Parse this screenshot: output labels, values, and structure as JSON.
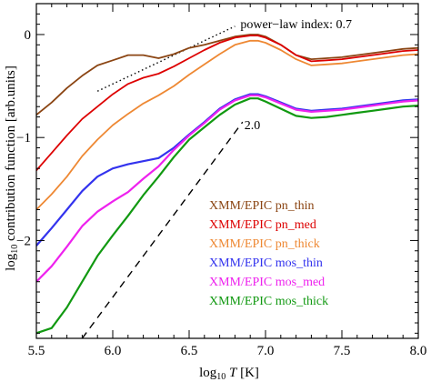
{
  "chart_data": {
    "type": "line",
    "xlim": [
      5.5,
      8.0
    ],
    "ylim": [
      -2.95,
      0.3
    ],
    "x_ticks": [
      5.5,
      6.0,
      6.5,
      7.0,
      7.5,
      8.0
    ],
    "x_tick_labels": [
      "5.5",
      "6.0",
      "6.5",
      "7.0",
      "7.5",
      "8.0"
    ],
    "y_ticks": [
      0,
      -1,
      -2
    ],
    "y_tick_labels": [
      "0",
      "−1",
      "−2"
    ],
    "grid": false,
    "legend_placement": "lower-right",
    "xlabel_parts": {
      "log": "log",
      "sub": "10",
      "var": "T",
      "unit": " [K]"
    },
    "ylabel_parts": {
      "log": "log",
      "sub": "10",
      "rest": " contribution function  [arb.units]"
    },
    "x": [
      5.5,
      5.6,
      5.7,
      5.8,
      5.9,
      6.0,
      6.1,
      6.2,
      6.3,
      6.4,
      6.5,
      6.6,
      6.7,
      6.8,
      6.9,
      6.95,
      7.0,
      7.1,
      7.2,
      7.3,
      7.4,
      7.5,
      7.6,
      7.7,
      7.8,
      7.9,
      8.0
    ],
    "series": [
      {
        "name": "XMM/EPIC pn_thin",
        "color": "#8b4513",
        "values": [
          -0.78,
          -0.66,
          -0.52,
          -0.4,
          -0.3,
          -0.25,
          -0.2,
          -0.2,
          -0.23,
          -0.19,
          -0.13,
          -0.1,
          -0.06,
          -0.02,
          0.0,
          0.0,
          -0.02,
          -0.1,
          -0.2,
          -0.24,
          -0.23,
          -0.22,
          -0.2,
          -0.18,
          -0.16,
          -0.14,
          -0.13
        ]
      },
      {
        "name": "XMM/EPIC pn_med",
        "color": "#dd0000",
        "values": [
          -1.32,
          -1.15,
          -0.98,
          -0.82,
          -0.7,
          -0.58,
          -0.48,
          -0.42,
          -0.38,
          -0.31,
          -0.23,
          -0.15,
          -0.08,
          -0.03,
          -0.01,
          -0.01,
          -0.03,
          -0.1,
          -0.2,
          -0.26,
          -0.25,
          -0.24,
          -0.22,
          -0.2,
          -0.18,
          -0.16,
          -0.15
        ]
      },
      {
        "name": "XMM/EPIC pn_thick",
        "color": "#ee8833",
        "values": [
          -1.7,
          -1.55,
          -1.38,
          -1.18,
          -1.02,
          -0.88,
          -0.77,
          -0.67,
          -0.59,
          -0.5,
          -0.39,
          -0.29,
          -0.19,
          -0.1,
          -0.06,
          -0.06,
          -0.08,
          -0.15,
          -0.24,
          -0.3,
          -0.29,
          -0.28,
          -0.26,
          -0.24,
          -0.22,
          -0.2,
          -0.19
        ]
      },
      {
        "name": "XMM/EPIC mos_thin",
        "color": "#3333ee",
        "values": [
          -2.05,
          -1.88,
          -1.7,
          -1.52,
          -1.38,
          -1.3,
          -1.26,
          -1.23,
          -1.2,
          -1.1,
          -0.97,
          -0.85,
          -0.72,
          -0.63,
          -0.58,
          -0.58,
          -0.6,
          -0.66,
          -0.72,
          -0.74,
          -0.73,
          -0.72,
          -0.7,
          -0.68,
          -0.66,
          -0.64,
          -0.63
        ]
      },
      {
        "name": "XMM/EPIC mos_med",
        "color": "#ee22ee",
        "values": [
          -2.4,
          -2.25,
          -2.06,
          -1.86,
          -1.72,
          -1.62,
          -1.53,
          -1.4,
          -1.28,
          -1.12,
          -0.98,
          -0.86,
          -0.73,
          -0.64,
          -0.59,
          -0.59,
          -0.61,
          -0.67,
          -0.73,
          -0.75,
          -0.74,
          -0.73,
          -0.71,
          -0.69,
          -0.67,
          -0.65,
          -0.64
        ]
      },
      {
        "name": "XMM/EPIC mos_thick",
        "color": "#119911",
        "values": [
          -2.9,
          -2.85,
          -2.65,
          -2.4,
          -2.15,
          -1.95,
          -1.76,
          -1.56,
          -1.38,
          -1.19,
          -1.02,
          -0.9,
          -0.78,
          -0.68,
          -0.62,
          -0.62,
          -0.65,
          -0.72,
          -0.79,
          -0.81,
          -0.8,
          -0.78,
          -0.76,
          -0.74,
          -0.72,
          -0.7,
          -0.69
        ]
      }
    ],
    "reference_lines": [
      {
        "label": "power−law index: 0.7",
        "style": "dotted",
        "x": [
          5.9,
          6.8
        ],
        "y": [
          -0.55,
          0.08
        ]
      },
      {
        "label": "2.0",
        "style": "dashed",
        "x": [
          5.8,
          6.85
        ],
        "y": [
          -2.95,
          -0.85
        ]
      }
    ]
  }
}
